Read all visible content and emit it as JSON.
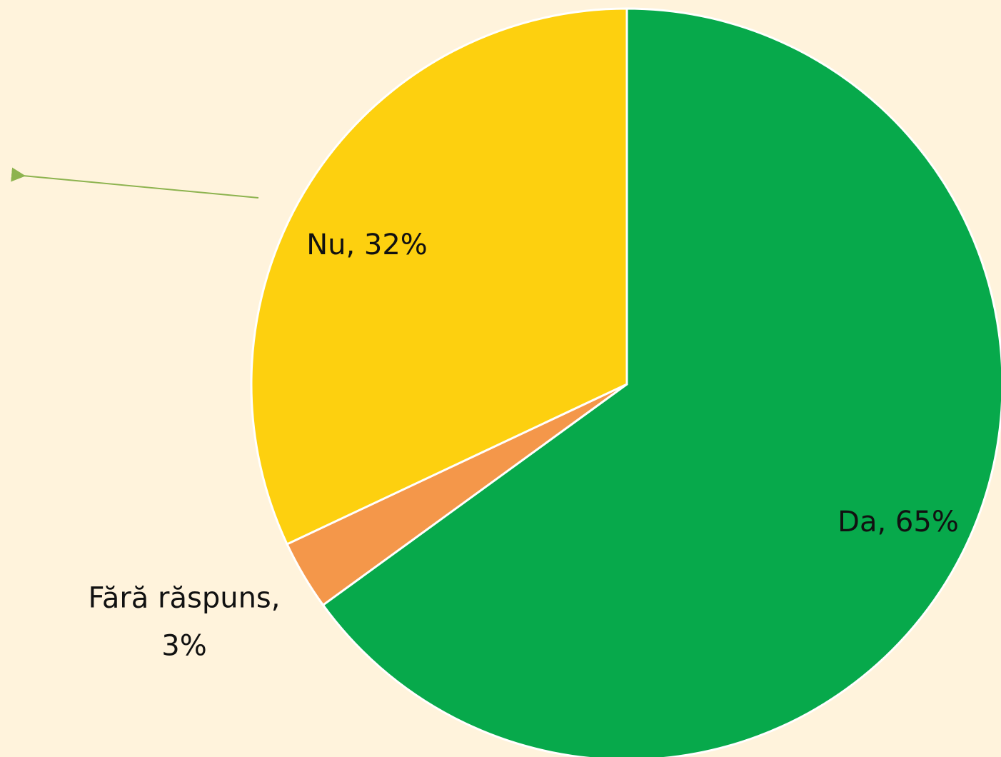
{
  "chart_data": {
    "type": "pie",
    "values": [
      65,
      3,
      32
    ],
    "value_labels": [
      "Da, 65%",
      "Fără răspuns,\n3%",
      "Nu, 32%"
    ],
    "colors": [
      "#07a94b",
      "#f4974a",
      "#fdd00f"
    ]
  }
}
